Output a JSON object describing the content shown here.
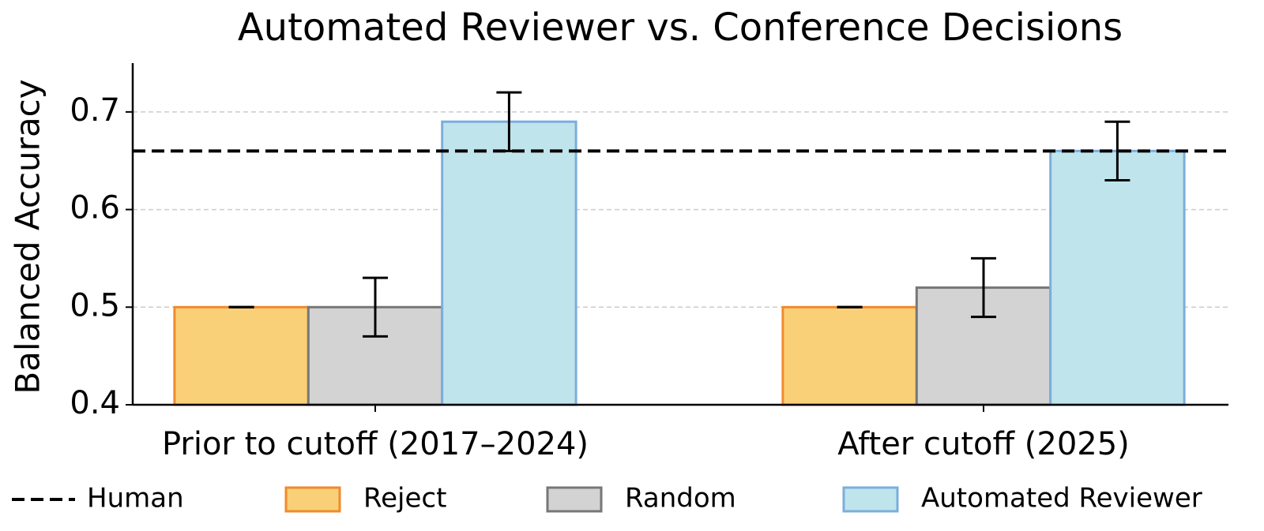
{
  "chart_data": {
    "type": "bar",
    "title": "Automated Reviewer vs. Conference Decisions",
    "y_label": "Balanced Accuracy",
    "categories": [
      "Prior to cutoff (2017–2024)",
      "After cutoff (2025)"
    ],
    "series": [
      {
        "name": "Reject",
        "color": "#f9d077",
        "edgecolor": "#f08a2c",
        "values": [
          0.5,
          0.5
        ],
        "errors": [
          0,
          0
        ]
      },
      {
        "name": "Random",
        "color": "#d3d3d3",
        "edgecolor": "#777777",
        "values": [
          0.5,
          0.52
        ],
        "errors": [
          0.03,
          0.03
        ]
      },
      {
        "name": "Automated Reviewer",
        "color": "#c0e4ec",
        "edgecolor": "#7aaedc",
        "values": [
          0.69,
          0.66
        ],
        "errors": [
          0.03,
          0.03
        ]
      }
    ],
    "reference_line": {
      "name": "Human",
      "value": 0.66,
      "color": "#000000"
    },
    "ylim": [
      0.4,
      0.75
    ],
    "yticks": [
      0.4,
      0.5,
      0.6,
      0.7
    ],
    "grid": true,
    "legend": "bottom"
  }
}
